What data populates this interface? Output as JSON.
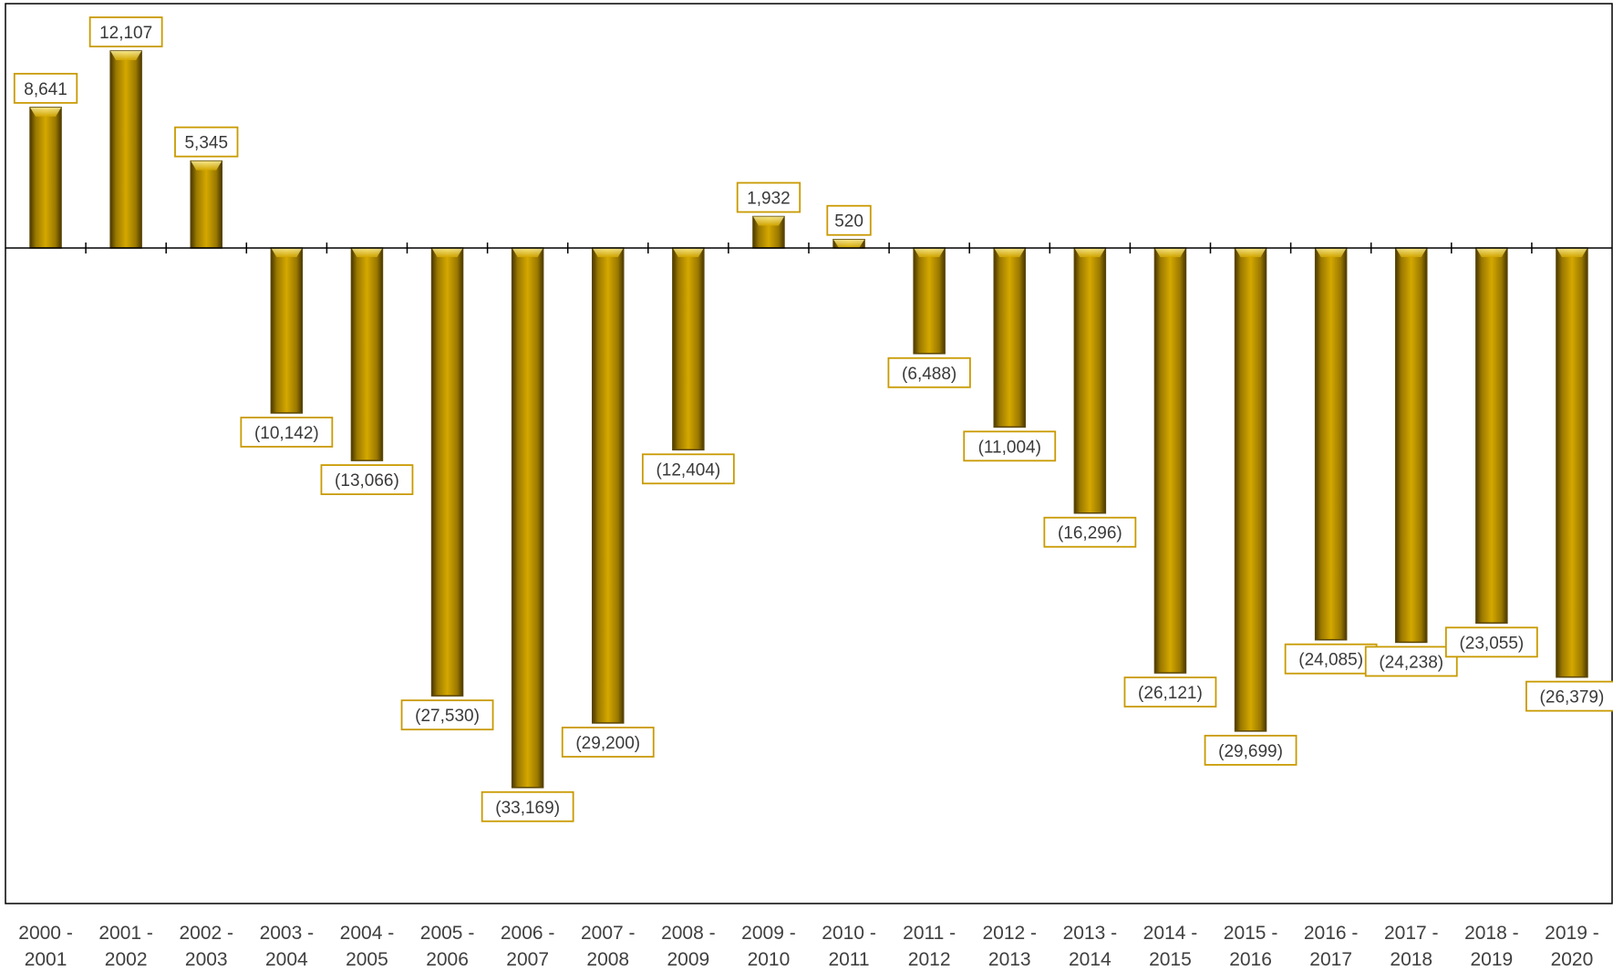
{
  "chart_data": {
    "type": "bar",
    "title": "",
    "xlabel": "",
    "ylabel": "",
    "ylim": [
      -40000,
      13500
    ],
    "grid": false,
    "legend": "none",
    "bar_color": "#C9A000",
    "bar_edge_color": "#5A4500",
    "label_border_color": "#C99A00",
    "axis_color": "#000000",
    "categories": [
      [
        "2000 -",
        "2001"
      ],
      [
        "2001 -",
        "2002"
      ],
      [
        "2002 -",
        "2003"
      ],
      [
        "2003 -",
        "2004"
      ],
      [
        "2004 -",
        "2005"
      ],
      [
        "2005 -",
        "2006"
      ],
      [
        "2006 -",
        "2007"
      ],
      [
        "2007 -",
        "2008"
      ],
      [
        "2008 -",
        "2009"
      ],
      [
        "2009 -",
        "2010"
      ],
      [
        "2010 -",
        "2011"
      ],
      [
        "2011 -",
        "2012"
      ],
      [
        "2012 -",
        "2013"
      ],
      [
        "2013 -",
        "2014"
      ],
      [
        "2014 -",
        "2015"
      ],
      [
        "2015 -",
        "2016"
      ],
      [
        "2016 -",
        "2017"
      ],
      [
        "2017 -",
        "2018"
      ],
      [
        "2018 -",
        "2019"
      ],
      [
        "2019 -",
        "2020"
      ]
    ],
    "values": [
      8641,
      12107,
      5345,
      -10142,
      -13066,
      -27530,
      -33169,
      -29200,
      -12404,
      1932,
      520,
      -6488,
      -11004,
      -16296,
      -26121,
      -29699,
      -24085,
      -24238,
      -23055,
      -26379
    ],
    "data_labels": [
      "8,641",
      "12,107",
      "5,345",
      "(10,142)",
      "(13,066)",
      "(27,530)",
      "(33,169)",
      "(29,200)",
      "(12,404)",
      "1,932",
      "520",
      "(6,488)",
      "(11,004)",
      "(16,296)",
      "(26,121)",
      "(29,699)",
      "(24,085)",
      "(24,238)",
      "(23,055)",
      "(26,379)"
    ]
  }
}
